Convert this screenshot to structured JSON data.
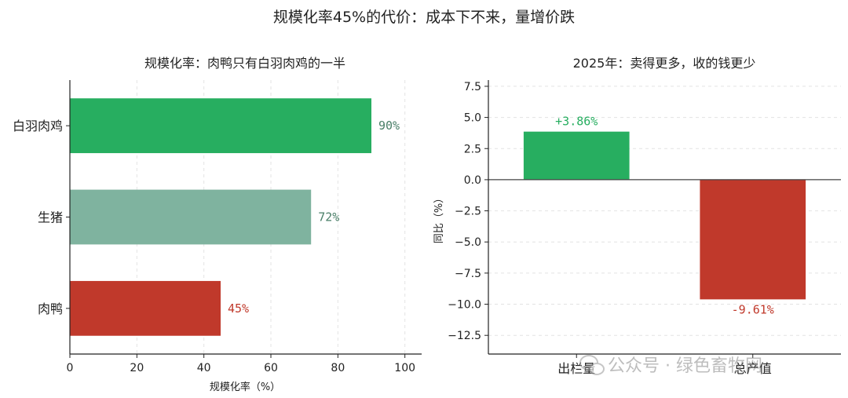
{
  "figure_title": "规模化率45%的代价：成本下不来，量增价跌",
  "watermark": "公众号 · 绿色畜牧网",
  "chart_data": [
    {
      "type": "bar",
      "orientation": "horizontal",
      "title": "规模化率：肉鸭只有白羽肉鸡的一半",
      "xlabel": "规模化率（%）",
      "ylabel": "",
      "xlim": [
        0,
        105
      ],
      "xticks": [
        0,
        20,
        40,
        60,
        80,
        100
      ],
      "grid": "x-dashed",
      "categories": [
        "白羽肉鸡",
        "生猪",
        "肉鸭"
      ],
      "values": [
        90,
        72,
        45
      ],
      "data_labels": [
        "90%",
        "72%",
        "45%"
      ],
      "colors": [
        "#27ae60",
        "#7fb39f",
        "#c0392b"
      ],
      "label_colors": [
        "#4a7f68",
        "#4a7f68",
        "#c0392b"
      ]
    },
    {
      "type": "bar",
      "orientation": "vertical",
      "title": "2025年：卖得更多，收的钱更少",
      "xlabel": "",
      "ylabel": "同比（%）",
      "ylim": [
        -14,
        8
      ],
      "yticks": [
        7.5,
        5.0,
        2.5,
        0.0,
        -2.5,
        -5.0,
        -7.5,
        -10.0,
        -12.5
      ],
      "ytick_labels": [
        "7.5",
        "5.0",
        "2.5",
        "0.0",
        "−2.5",
        "−5.0",
        "−7.5",
        "−10.0",
        "−12.5"
      ],
      "grid": "y-dashed",
      "categories": [
        "出栏量",
        "总产值"
      ],
      "values": [
        3.86,
        -9.61
      ],
      "data_labels": [
        "+3.86%",
        "-9.61%"
      ],
      "colors": [
        "#27ae60",
        "#c0392b"
      ]
    }
  ]
}
